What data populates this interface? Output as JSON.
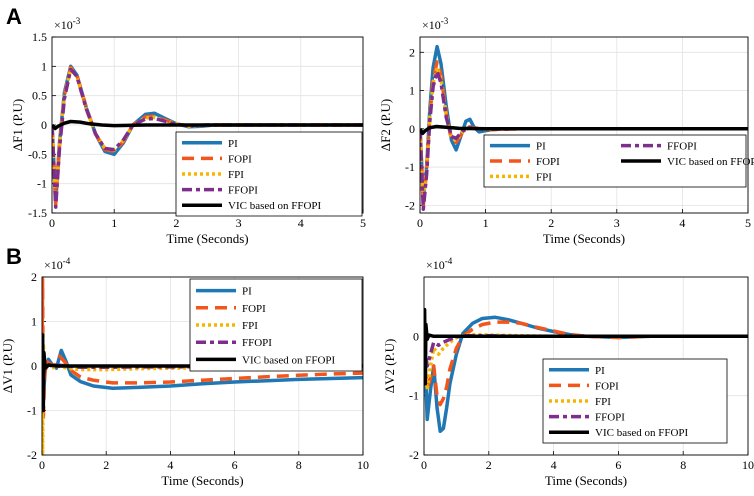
{
  "panel_labels": {
    "a": "A",
    "b": "B"
  },
  "chart_data": [
    {
      "id": "p1",
      "type": "line",
      "ylabel": "ΔF1 (P.U)",
      "xlabel": "Time (Seconds)",
      "exponent": "×10",
      "exponent_power": "-3",
      "xlim": [
        0,
        5
      ],
      "ylim": [
        -1.5,
        1.5
      ],
      "xticks": [
        0,
        1,
        2,
        3,
        4,
        5
      ],
      "xtick_labels": [
        "0",
        "1",
        "2",
        "3",
        "4",
        "5"
      ],
      "yticks": [
        -1.5,
        -1,
        -0.5,
        0,
        0.5,
        1,
        1.5
      ],
      "ytick_labels": [
        "-1.5",
        "-1",
        "-0.5",
        "0",
        "0.5",
        "1",
        "1.5"
      ],
      "legend": [
        "PI",
        "FOPI",
        "FPI",
        "FFOPI",
        "VIC based on FFOPI"
      ],
      "series": [
        {
          "name": "PI",
          "x": [
            0,
            0.06,
            0.12,
            0.2,
            0.3,
            0.4,
            0.55,
            0.7,
            0.85,
            1.0,
            1.15,
            1.3,
            1.5,
            1.65,
            1.8,
            2.0,
            2.2,
            2.4,
            2.6,
            3,
            4,
            5
          ],
          "y": [
            0,
            -1.3,
            -0.3,
            0.55,
            1.0,
            0.85,
            0.3,
            -0.15,
            -0.45,
            -0.5,
            -0.3,
            0.0,
            0.18,
            0.2,
            0.12,
            0.02,
            -0.03,
            -0.02,
            0.0,
            0.0,
            0.0,
            0.0
          ]
        },
        {
          "name": "FOPI",
          "x": [
            0,
            0.06,
            0.12,
            0.2,
            0.3,
            0.4,
            0.55,
            0.7,
            0.85,
            1.0,
            1.15,
            1.3,
            1.5,
            1.65,
            1.8,
            2.0,
            2.2,
            2.5,
            3,
            4,
            5
          ],
          "y": [
            0,
            -1.35,
            -0.35,
            0.5,
            0.98,
            0.85,
            0.3,
            -0.15,
            -0.42,
            -0.45,
            -0.28,
            0.0,
            0.14,
            0.15,
            0.09,
            0.02,
            -0.02,
            0.0,
            0.0,
            0.0,
            0.0
          ]
        },
        {
          "name": "FPI",
          "x": [
            0,
            0.06,
            0.12,
            0.2,
            0.3,
            0.4,
            0.55,
            0.7,
            0.85,
            1.0,
            1.15,
            1.3,
            1.5,
            1.65,
            1.8,
            2.0,
            2.2,
            2.5,
            3,
            4,
            5
          ],
          "y": [
            0,
            -1.3,
            -0.3,
            0.5,
            0.96,
            0.82,
            0.28,
            -0.15,
            -0.4,
            -0.43,
            -0.26,
            0.0,
            0.12,
            0.13,
            0.08,
            0.02,
            -0.02,
            0.0,
            0.0,
            0.0,
            0.0
          ]
        },
        {
          "name": "FFOPI",
          "x": [
            0,
            0.06,
            0.12,
            0.2,
            0.3,
            0.4,
            0.55,
            0.7,
            0.85,
            1.0,
            1.15,
            1.3,
            1.5,
            1.65,
            1.8,
            2.0,
            2.2,
            2.5,
            3,
            4,
            5
          ],
          "y": [
            0,
            -1.4,
            -0.4,
            0.45,
            0.95,
            0.83,
            0.28,
            -0.15,
            -0.4,
            -0.42,
            -0.25,
            0.0,
            0.1,
            0.11,
            0.07,
            0.01,
            -0.01,
            0.0,
            0.0,
            0.0,
            0.0
          ]
        },
        {
          "name": "VIC based on FFOPI",
          "x": [
            0,
            0.05,
            0.1,
            0.2,
            0.3,
            0.45,
            0.6,
            0.8,
            1.0,
            1.5,
            2,
            3,
            4,
            5
          ],
          "y": [
            0,
            -0.06,
            -0.02,
            0.03,
            0.06,
            0.05,
            0.02,
            0.0,
            -0.01,
            0.0,
            0.0,
            0.0,
            0.0,
            0.0
          ]
        }
      ]
    },
    {
      "id": "p2",
      "type": "line",
      "ylabel": "ΔF2 (P.U)",
      "xlabel": "Time (Seconds)",
      "exponent": "×10",
      "exponent_power": "-3",
      "xlim": [
        0,
        5
      ],
      "ylim": [
        -2.2,
        2.4
      ],
      "xticks": [
        0,
        1,
        2,
        3,
        4,
        5
      ],
      "xtick_labels": [
        "0",
        "1",
        "2",
        "3",
        "4",
        "5"
      ],
      "yticks": [
        -2,
        -1,
        0,
        1,
        2
      ],
      "ytick_labels": [
        "-2",
        "-1",
        "0",
        "1",
        "2"
      ],
      "legend": [
        "PI",
        "FOPI",
        "FPI",
        "FFOPI",
        "VIC based on FFOPI"
      ],
      "series": [
        {
          "name": "PI",
          "x": [
            0,
            0.05,
            0.1,
            0.15,
            0.2,
            0.26,
            0.32,
            0.4,
            0.48,
            0.55,
            0.62,
            0.7,
            0.76,
            0.82,
            0.9,
            1.0,
            1.2,
            1.5,
            2,
            3,
            4,
            5
          ],
          "y": [
            0,
            -1.8,
            -1.0,
            0.5,
            1.6,
            2.15,
            1.7,
            0.6,
            -0.3,
            -0.55,
            -0.2,
            0.2,
            0.25,
            0.05,
            -0.08,
            -0.05,
            0.0,
            0.0,
            0.0,
            0.0,
            0.0,
            0.0
          ]
        },
        {
          "name": "FOPI",
          "x": [
            0,
            0.05,
            0.1,
            0.15,
            0.2,
            0.26,
            0.32,
            0.4,
            0.48,
            0.55,
            0.65,
            0.75,
            0.9,
            1.1,
            1.5,
            2,
            3,
            4,
            5
          ],
          "y": [
            0,
            -2.0,
            -1.1,
            0.3,
            1.3,
            1.75,
            1.4,
            0.4,
            -0.3,
            -0.35,
            -0.1,
            0.05,
            0.0,
            -0.02,
            0.0,
            0.0,
            0.0,
            0.0,
            0.0
          ]
        },
        {
          "name": "FPI",
          "x": [
            0,
            0.05,
            0.1,
            0.15,
            0.2,
            0.26,
            0.32,
            0.4,
            0.48,
            0.55,
            0.65,
            0.75,
            0.9,
            1.1,
            1.5,
            2,
            3,
            4,
            5
          ],
          "y": [
            0,
            -1.9,
            -1.0,
            0.3,
            1.2,
            1.6,
            1.3,
            0.35,
            -0.25,
            -0.3,
            -0.08,
            0.04,
            0.0,
            -0.02,
            0.0,
            0.0,
            0.0,
            0.0,
            0.0
          ]
        },
        {
          "name": "FFOPI",
          "x": [
            0,
            0.05,
            0.1,
            0.15,
            0.2,
            0.26,
            0.32,
            0.4,
            0.48,
            0.55,
            0.65,
            0.75,
            0.9,
            1.1,
            1.5,
            2,
            3,
            4,
            5
          ],
          "y": [
            0,
            -2.1,
            -1.2,
            0.2,
            1.1,
            1.5,
            1.2,
            0.3,
            -0.2,
            -0.25,
            -0.06,
            0.03,
            0.0,
            -0.01,
            0.0,
            0.0,
            0.0,
            0.0,
            0.0
          ]
        },
        {
          "name": "VIC based on FFOPI",
          "x": [
            0,
            0.04,
            0.08,
            0.15,
            0.25,
            0.4,
            0.6,
            1.0,
            2,
            3,
            4,
            5
          ],
          "y": [
            0,
            -0.12,
            -0.05,
            0.03,
            0.06,
            0.04,
            0.01,
            0.0,
            0.0,
            0.0,
            0.0,
            0.0
          ]
        }
      ]
    },
    {
      "id": "p3",
      "type": "line",
      "ylabel": "ΔV1 (P.U)",
      "xlabel": "Time (Seconds)",
      "exponent": "×10",
      "exponent_power": "-4",
      "xlim": [
        0,
        10
      ],
      "ylim": [
        -2,
        2
      ],
      "xticks": [
        0,
        2,
        4,
        6,
        8,
        10
      ],
      "xtick_labels": [
        "0",
        "2",
        "4",
        "6",
        "8",
        "10"
      ],
      "yticks": [
        -2,
        -1,
        0,
        1,
        2
      ],
      "ytick_labels": [
        "-2",
        "-1",
        "0",
        "1",
        "2"
      ],
      "legend": [
        "PI",
        "FOPI",
        "FPI",
        "FFOPI",
        "VIC based on FFOPI"
      ],
      "series": [
        {
          "name": "PI",
          "x": [
            0,
            0.02,
            0.05,
            0.1,
            0.2,
            0.3,
            0.45,
            0.6,
            0.75,
            0.9,
            1.2,
            1.6,
            2.2,
            3,
            4,
            5,
            6,
            7,
            8,
            9,
            10
          ],
          "y": [
            0,
            0.6,
            -0.6,
            -0.1,
            0.15,
            0.05,
            -0.05,
            0.35,
            0.1,
            -0.2,
            -0.35,
            -0.45,
            -0.5,
            -0.48,
            -0.45,
            -0.4,
            -0.36,
            -0.33,
            -0.3,
            -0.28,
            -0.26
          ]
        },
        {
          "name": "FOPI",
          "x": [
            0,
            0.02,
            0.04,
            0.08,
            0.15,
            0.25,
            0.4,
            0.55,
            0.7,
            0.9,
            1.2,
            1.6,
            2.2,
            3,
            4,
            5,
            6,
            7,
            8,
            9,
            10
          ],
          "y": [
            0,
            1.95,
            -1.2,
            -0.2,
            0.1,
            0.05,
            0.0,
            0.22,
            0.1,
            -0.1,
            -0.25,
            -0.32,
            -0.38,
            -0.38,
            -0.36,
            -0.32,
            -0.28,
            -0.24,
            -0.21,
            -0.18,
            -0.16
          ]
        },
        {
          "name": "FPI",
          "x": [
            0,
            0.02,
            0.04,
            0.08,
            0.15,
            0.3,
            0.5,
            0.8,
            1.2,
            2,
            3,
            4,
            6,
            8,
            10
          ],
          "y": [
            0,
            -1.95,
            0.5,
            0.0,
            0.05,
            -0.05,
            0.0,
            -0.05,
            -0.08,
            -0.08,
            -0.06,
            -0.05,
            -0.03,
            -0.02,
            -0.01
          ]
        },
        {
          "name": "FFOPI",
          "x": [
            0,
            0.02,
            0.04,
            0.08,
            0.15,
            0.3,
            0.5,
            0.8,
            1.2,
            2,
            3,
            4,
            6,
            8,
            10
          ],
          "y": [
            0,
            0.3,
            -0.3,
            0.0,
            0.05,
            0.0,
            0.02,
            0.0,
            -0.03,
            -0.03,
            -0.02,
            -0.02,
            -0.01,
            -0.01,
            0.0
          ]
        },
        {
          "name": "VIC based on FFOPI",
          "x": [
            0,
            0.02,
            0.04,
            0.06,
            0.1,
            0.2,
            0.5,
            1,
            2,
            4,
            6,
            8,
            10
          ],
          "y": [
            0,
            0.7,
            -1.0,
            0.3,
            -0.05,
            0.02,
            0.0,
            0.0,
            0.0,
            0.0,
            0.0,
            0.0,
            0.0
          ]
        }
      ]
    },
    {
      "id": "p4",
      "type": "line",
      "ylabel": "ΔV2 (P.U)",
      "xlabel": "Time (Seconds)",
      "exponent": "×10",
      "exponent_power": "-4",
      "xlim": [
        0,
        10
      ],
      "ylim": [
        -2,
        1
      ],
      "xticks": [
        0,
        2,
        4,
        6,
        8,
        10
      ],
      "xtick_labels": [
        "0",
        "2",
        "4",
        "6",
        "8",
        "10"
      ],
      "yticks": [
        -2,
        -1,
        0
      ],
      "ytick_labels": [
        "-2",
        "-1",
        "0"
      ],
      "legend": [
        "PI",
        "FOPI",
        "FPI",
        "FFOPI",
        "VIC based on FFOPI"
      ],
      "series": [
        {
          "name": "PI",
          "x": [
            0,
            0.05,
            0.1,
            0.2,
            0.3,
            0.4,
            0.5,
            0.6,
            0.7,
            0.8,
            1.0,
            1.2,
            1.5,
            1.8,
            2.2,
            2.6,
            3,
            3.5,
            4,
            4.5,
            5,
            6,
            7,
            8,
            9,
            10
          ],
          "y": [
            0,
            -0.6,
            -1.4,
            -0.9,
            -0.5,
            -1.2,
            -1.6,
            -1.55,
            -1.2,
            -0.8,
            -0.3,
            0.05,
            0.22,
            0.3,
            0.32,
            0.28,
            0.22,
            0.14,
            0.08,
            0.03,
            0.0,
            -0.02,
            0.0,
            0.0,
            0.0,
            0.0
          ]
        },
        {
          "name": "FOPI",
          "x": [
            0,
            0.05,
            0.1,
            0.2,
            0.3,
            0.4,
            0.5,
            0.6,
            0.7,
            0.8,
            1.0,
            1.2,
            1.5,
            1.8,
            2.2,
            2.6,
            3,
            3.5,
            4,
            4.5,
            5,
            6,
            7,
            8,
            9,
            10
          ],
          "y": [
            0,
            -0.5,
            -0.9,
            -0.7,
            -0.5,
            -1.0,
            -1.15,
            -1.05,
            -0.85,
            -0.55,
            -0.2,
            0.0,
            0.12,
            0.2,
            0.24,
            0.24,
            0.22,
            0.15,
            0.09,
            0.03,
            0.0,
            -0.02,
            0.0,
            0.0,
            0.0,
            0.0
          ]
        },
        {
          "name": "FPI",
          "x": [
            0,
            0.05,
            0.1,
            0.2,
            0.3,
            0.45,
            0.6,
            0.8,
            1.0,
            1.3,
            1.6,
            2,
            3,
            4,
            6,
            8,
            10
          ],
          "y": [
            0,
            -0.6,
            -0.9,
            -0.5,
            -0.2,
            -0.3,
            -0.2,
            -0.1,
            -0.02,
            0.02,
            0.03,
            0.02,
            0.01,
            0.0,
            0.0,
            0.0,
            0.0
          ]
        },
        {
          "name": "FFOPI",
          "x": [
            0,
            0.05,
            0.1,
            0.2,
            0.3,
            0.45,
            0.6,
            0.8,
            1.0,
            1.3,
            1.6,
            2,
            3,
            4,
            6,
            8,
            10
          ],
          "y": [
            0,
            -0.3,
            -0.5,
            -0.3,
            -0.1,
            -0.15,
            -0.1,
            -0.05,
            -0.01,
            0.01,
            0.01,
            0.01,
            0.0,
            0.0,
            0.0,
            0.0,
            0.0
          ]
        },
        {
          "name": "VIC based on FFOPI",
          "x": [
            0,
            0.02,
            0.04,
            0.06,
            0.1,
            0.15,
            0.3,
            0.6,
            1,
            2,
            4,
            6,
            8,
            10
          ],
          "y": [
            0,
            0.45,
            -0.8,
            0.2,
            -0.05,
            0.02,
            0.0,
            0.0,
            0.0,
            0.0,
            0.0,
            0.0,
            0.0,
            0.0
          ]
        }
      ]
    }
  ],
  "colors": {
    "PI": "#1f77b4",
    "FOPI": "#f2561d",
    "FPI": "#f7b500",
    "FFOPI": "#7e2f8e",
    "VIC based on FFOPI": "#000000"
  }
}
